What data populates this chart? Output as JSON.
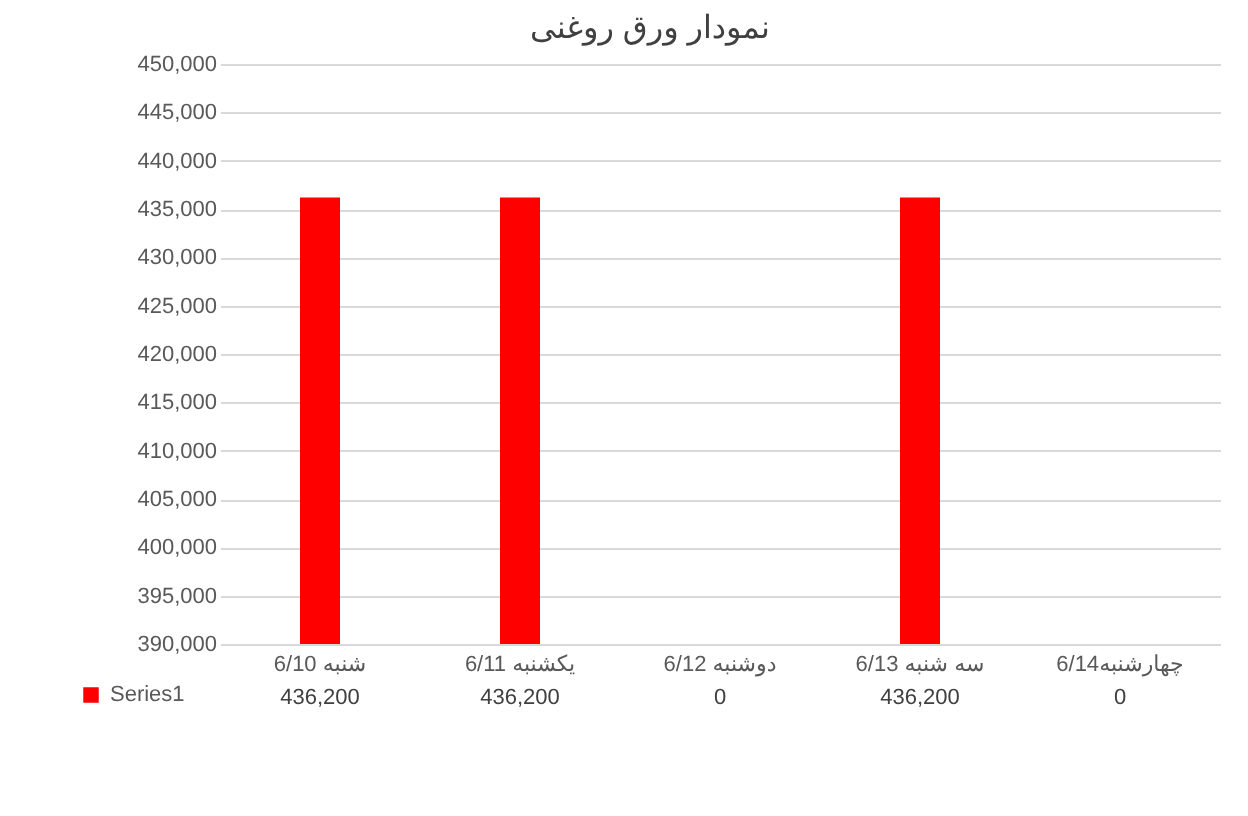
{
  "chart_data": {
    "type": "bar",
    "title": "نمودار ورق روغنی",
    "categories": [
      "شنبه 6/10",
      "یکشنبه 6/11",
      "دوشنبه 6/12",
      "سه شنبه 6/13",
      "چهارشنبه6/14"
    ],
    "series": [
      {
        "name": "Series1",
        "color": "#ff0000",
        "values": [
          436200,
          436200,
          null,
          436200,
          null
        ],
        "value_labels": [
          "436,200",
          "436,200",
          "0",
          "436,200",
          "0"
        ]
      }
    ],
    "ylim": [
      390000,
      450000
    ],
    "yticks": [
      {
        "value": 390000,
        "label": "390,000"
      },
      {
        "value": 395000,
        "label": "395,000"
      },
      {
        "value": 400000,
        "label": "400,000"
      },
      {
        "value": 405000,
        "label": "405,000"
      },
      {
        "value": 410000,
        "label": "410,000"
      },
      {
        "value": 415000,
        "label": "415,000"
      },
      {
        "value": 420000,
        "label": "420,000"
      },
      {
        "value": 425000,
        "label": "425,000"
      },
      {
        "value": 430000,
        "label": "430,000"
      },
      {
        "value": 435000,
        "label": "435,000"
      },
      {
        "value": 440000,
        "label": "440,000"
      },
      {
        "value": 445000,
        "label": "445,000"
      },
      {
        "value": 450000,
        "label": "450,000"
      }
    ],
    "grid": "y",
    "legend": "bottom"
  }
}
